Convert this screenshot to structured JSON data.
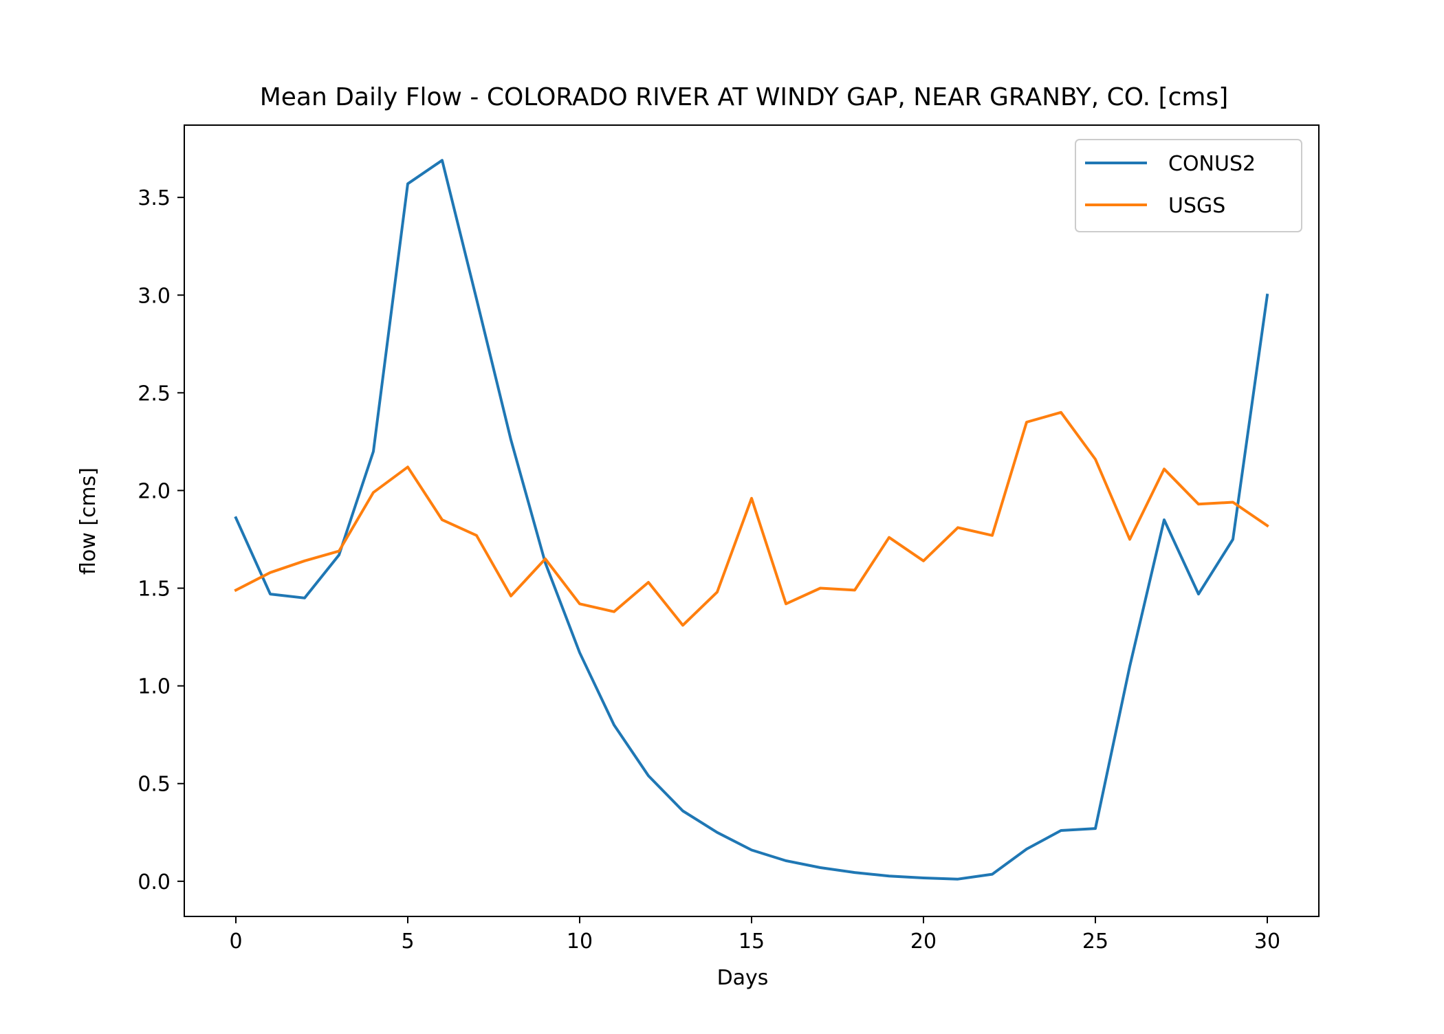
{
  "chart_data": {
    "type": "line",
    "title": "Mean Daily Flow - COLORADO RIVER AT WINDY GAP, NEAR GRANBY, CO. [cms]",
    "xlabel": "Days",
    "ylabel": "flow [cms]",
    "xlim": [
      -1.5,
      31.5
    ],
    "ylim": [
      -0.18,
      3.87
    ],
    "x_ticks": [
      0,
      5,
      10,
      15,
      20,
      25,
      30
    ],
    "x_tick_labels": [
      "0",
      "5",
      "10",
      "15",
      "20",
      "25",
      "30"
    ],
    "y_ticks": [
      0.0,
      0.5,
      1.0,
      1.5,
      2.0,
      2.5,
      3.0,
      3.5
    ],
    "y_tick_labels": [
      "0.0",
      "0.5",
      "1.0",
      "1.5",
      "2.0",
      "2.5",
      "3.0",
      "3.5"
    ],
    "grid": false,
    "legend_position": "top-right",
    "x": [
      0,
      1,
      2,
      3,
      4,
      5,
      6,
      7,
      8,
      9,
      10,
      11,
      12,
      13,
      14,
      15,
      16,
      17,
      18,
      19,
      20,
      21,
      22,
      23,
      24,
      25,
      26,
      27,
      28,
      29,
      30
    ],
    "series": [
      {
        "name": "CONUS2",
        "color": "#1f77b4",
        "values": [
          1.86,
          1.47,
          1.45,
          1.67,
          2.2,
          3.57,
          3.69,
          2.98,
          2.26,
          1.63,
          1.17,
          0.8,
          0.54,
          0.36,
          0.25,
          0.16,
          0.105,
          0.07,
          0.045,
          0.027,
          0.017,
          0.011,
          0.036,
          0.165,
          0.26,
          0.27,
          1.1,
          1.85,
          1.47,
          1.75,
          3.0
        ]
      },
      {
        "name": "USGS",
        "color": "#ff7f0e",
        "values": [
          1.49,
          1.58,
          1.64,
          1.69,
          1.99,
          2.12,
          1.85,
          1.77,
          1.46,
          1.65,
          1.42,
          1.38,
          1.53,
          1.31,
          1.48,
          1.96,
          1.42,
          1.5,
          1.49,
          1.76,
          1.64,
          1.81,
          1.77,
          2.35,
          2.4,
          2.16,
          1.75,
          2.11,
          1.93,
          1.94,
          1.82
        ]
      }
    ]
  }
}
